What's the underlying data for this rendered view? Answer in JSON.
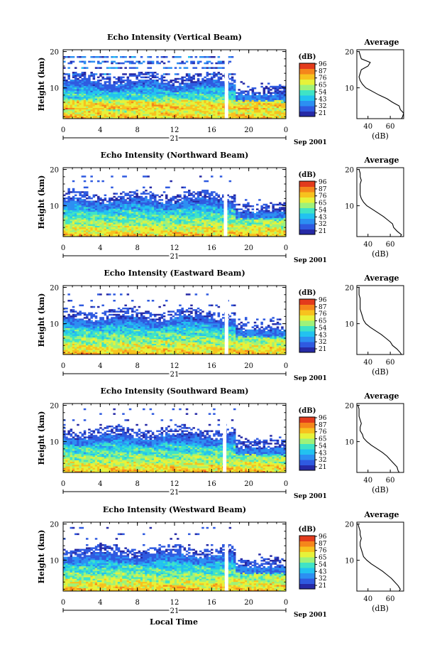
{
  "chart_data": [
    {
      "type": "heatmap",
      "title": "Echo Intensity (Vertical Beam)",
      "ylabel": "Height (km)",
      "x_ticks": [
        "0",
        "4",
        "8",
        "12",
        "16",
        "20",
        "0"
      ],
      "y_ticks": [
        "10",
        "20"
      ],
      "xlim": [
        0,
        24
      ],
      "ylim": [
        1.5,
        20.5
      ],
      "date_day": "21",
      "date_label": "Sep 2001",
      "colorbar": {
        "unit": "(dB)",
        "ticks": [
          "96",
          "87",
          "76",
          "65",
          "54",
          "43",
          "32",
          "21"
        ]
      },
      "blank_time": 17.6,
      "profile": {
        "title": "Average",
        "xlabel": "(dB)",
        "x_ticks": [
          "40",
          "60"
        ],
        "y_ticks": [
          "10",
          "20"
        ],
        "xlim": [
          30,
          72
        ],
        "heights": [
          1.5,
          2,
          3,
          4,
          5,
          6,
          7,
          8,
          9,
          10,
          11,
          12,
          13,
          14,
          15,
          16,
          17,
          18,
          19,
          20
        ],
        "values": [
          70,
          71,
          72,
          69,
          68,
          62,
          57,
          50,
          44,
          38,
          35,
          33,
          32,
          33,
          34,
          40,
          42,
          34,
          33,
          32
        ]
      }
    },
    {
      "type": "heatmap",
      "title": "Echo Intensity (Northward Beam)",
      "ylabel": "Height (km)",
      "x_ticks": [
        "0",
        "4",
        "8",
        "12",
        "16",
        "20",
        "0"
      ],
      "y_ticks": [
        "10",
        "20"
      ],
      "xlim": [
        0,
        24
      ],
      "ylim": [
        1.5,
        20.5
      ],
      "date_day": "21",
      "date_label": "Sep 2001",
      "colorbar": {
        "unit": "(dB)",
        "ticks": [
          "96",
          "87",
          "76",
          "65",
          "54",
          "43",
          "32",
          "21"
        ]
      },
      "blank_time": 17.5,
      "profile": {
        "title": "Average",
        "xlabel": "(dB)",
        "x_ticks": [
          "40",
          "60"
        ],
        "y_ticks": [
          "10",
          "20"
        ],
        "xlim": [
          30,
          72
        ],
        "heights": [
          1.5,
          2,
          3,
          4,
          5,
          6,
          7,
          8,
          9,
          10,
          11,
          12,
          13,
          14,
          15,
          16,
          17,
          18,
          19,
          20
        ],
        "values": [
          69,
          70,
          66,
          63,
          62,
          58,
          54,
          49,
          44,
          39,
          36,
          34,
          33,
          33,
          33,
          33,
          34,
          33,
          33,
          32
        ]
      }
    },
    {
      "type": "heatmap",
      "title": "Echo Intensity (Eastward Beam)",
      "ylabel": "Height (km)",
      "x_ticks": [
        "0",
        "4",
        "8",
        "12",
        "16",
        "20",
        "0"
      ],
      "y_ticks": [
        "10",
        "20"
      ],
      "xlim": [
        0,
        24
      ],
      "ylim": [
        1.5,
        20.5
      ],
      "date_day": "21",
      "date_label": "Sep 2001",
      "colorbar": {
        "unit": "(dB)",
        "ticks": [
          "96",
          "87",
          "76",
          "65",
          "54",
          "43",
          "32",
          "21"
        ]
      },
      "blank_time": 17.6,
      "profile": {
        "title": "Average",
        "xlabel": "(dB)",
        "x_ticks": [
          "40",
          "60"
        ],
        "y_ticks": [
          "10",
          "20"
        ],
        "xlim": [
          30,
          72
        ],
        "heights": [
          1.5,
          2,
          3,
          4,
          5,
          6,
          7,
          8,
          9,
          10,
          11,
          12,
          13,
          14,
          15,
          16,
          17,
          18,
          19,
          20
        ],
        "values": [
          70,
          69,
          66,
          62,
          60,
          56,
          52,
          47,
          42,
          38,
          36,
          35,
          34,
          33,
          33,
          33,
          33,
          32,
          32,
          32
        ]
      }
    },
    {
      "type": "heatmap",
      "title": "Echo Intensity (Southward Beam)",
      "ylabel": "Height (km)",
      "x_ticks": [
        "0",
        "4",
        "8",
        "12",
        "16",
        "20",
        "0"
      ],
      "y_ticks": [
        "10",
        "20"
      ],
      "xlim": [
        0,
        24
      ],
      "ylim": [
        1.5,
        20.5
      ],
      "date_day": "21",
      "date_label": "Sep 2001",
      "colorbar": {
        "unit": "(dB)",
        "ticks": [
          "96",
          "87",
          "76",
          "65",
          "54",
          "43",
          "32",
          "21"
        ]
      },
      "blank_time": 17.4,
      "profile": {
        "title": "Average",
        "xlabel": "(dB)",
        "x_ticks": [
          "40",
          "60"
        ],
        "y_ticks": [
          "10",
          "20"
        ],
        "xlim": [
          30,
          72
        ],
        "heights": [
          1.5,
          2,
          3,
          4,
          5,
          6,
          7,
          8,
          9,
          10,
          11,
          12,
          13,
          14,
          15,
          16,
          17,
          18,
          19,
          20
        ],
        "values": [
          68,
          67,
          66,
          63,
          60,
          57,
          53,
          48,
          43,
          39,
          36,
          35,
          33,
          33,
          34,
          33,
          32,
          32,
          32,
          31
        ]
      }
    },
    {
      "type": "heatmap",
      "title": "Echo Intensity (Westward Beam)",
      "ylabel": "Height (km)",
      "x_ticks": [
        "0",
        "4",
        "8",
        "12",
        "16",
        "20",
        "0"
      ],
      "y_ticks": [
        "10",
        "20"
      ],
      "xlim": [
        0,
        24
      ],
      "ylim": [
        1.5,
        20.5
      ],
      "date_day": "21",
      "date_label": "Sep 2001",
      "colorbar": {
        "unit": "(dB)",
        "ticks": [
          "96",
          "87",
          "76",
          "65",
          "54",
          "43",
          "32",
          "21"
        ]
      },
      "blank_time": 17.6,
      "profile": {
        "title": "Average",
        "xlabel": "(dB)",
        "x_ticks": [
          "40",
          "60"
        ],
        "y_ticks": [
          "10",
          "20"
        ],
        "xlim": [
          30,
          72
        ],
        "heights": [
          1.5,
          2,
          3,
          4,
          5,
          6,
          7,
          8,
          9,
          10,
          11,
          12,
          13,
          14,
          15,
          16,
          17,
          18,
          19,
          20
        ],
        "values": [
          68,
          69,
          67,
          64,
          61,
          57,
          53,
          48,
          43,
          39,
          36,
          35,
          34,
          33,
          33,
          34,
          33,
          33,
          32,
          31
        ]
      }
    }
  ],
  "footer": {
    "xlabel": "Local Time"
  },
  "colormap": [
    "#262aa6",
    "#2f5ae0",
    "#2c8ff2",
    "#22c2f0",
    "#3fe3c6",
    "#9ef27a",
    "#e6f23a",
    "#f7c21e",
    "#f5861b",
    "#e33b1c"
  ]
}
